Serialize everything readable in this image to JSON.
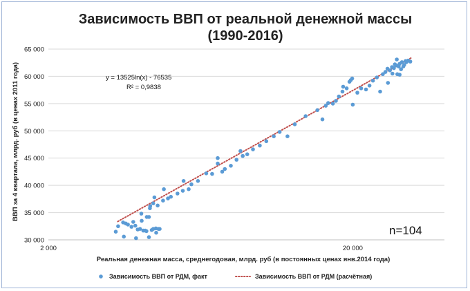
{
  "chart_data": {
    "type": "scatter",
    "title_line1": "Зависимость ВВП от реальной денежной массы",
    "title_line2": "(1990-2016)",
    "xlabel": "Реальная денежная масса, среднегодовая, млрд. руб (в постоянных ценах янв.2014 года)",
    "ylabel": "ВВП за 4 квартала, млрд. руб (в ценах 2011 года)",
    "x_scale": "log",
    "xlim": [
      2000,
      40000
    ],
    "ylim": [
      30000,
      65000
    ],
    "x_ticks": [
      {
        "value": 2000,
        "label": "2 000"
      },
      {
        "value": 20000,
        "label": "20 000"
      }
    ],
    "y_ticks": [
      {
        "value": 30000,
        "label": "30 000"
      },
      {
        "value": 35000,
        "label": "35 000"
      },
      {
        "value": 40000,
        "label": "40 000"
      },
      {
        "value": 45000,
        "label": "45 000"
      },
      {
        "value": 50000,
        "label": "50 000"
      },
      {
        "value": 55000,
        "label": "55 000"
      },
      {
        "value": 60000,
        "label": "60 000"
      },
      {
        "value": 65000,
        "label": "65 000"
      }
    ],
    "grid": "horizontal",
    "legend_position": "bottom",
    "annotation_equation": "y = 13525ln(x) - 76535",
    "annotation_r2": "R² = 0,9838",
    "annotation_n": "n=104",
    "series": [
      {
        "name": "Зависимость ВВП от РДМ, факт",
        "color": "#5b9bd5",
        "marker": "circle",
        "points": [
          [
            3330,
            31500
          ],
          [
            3390,
            32500
          ],
          [
            3520,
            33200
          ],
          [
            3540,
            30600
          ],
          [
            3590,
            33000
          ],
          [
            3650,
            32800
          ],
          [
            3750,
            32400
          ],
          [
            3800,
            33300
          ],
          [
            3860,
            32600
          ],
          [
            3880,
            30300
          ],
          [
            3930,
            31900
          ],
          [
            4000,
            32000
          ],
          [
            4040,
            34800
          ],
          [
            4050,
            33500
          ],
          [
            4100,
            31700
          ],
          [
            4160,
            31700
          ],
          [
            4200,
            31600
          ],
          [
            4210,
            34200
          ],
          [
            4280,
            34200
          ],
          [
            4280,
            30500
          ],
          [
            4310,
            35800
          ],
          [
            4320,
            36200
          ],
          [
            4370,
            31800
          ],
          [
            4420,
            36700
          ],
          [
            4420,
            32000
          ],
          [
            4460,
            37800
          ],
          [
            4510,
            32100
          ],
          [
            4520,
            31300
          ],
          [
            4570,
            36300
          ],
          [
            4600,
            32000
          ],
          [
            4640,
            32000
          ],
          [
            4760,
            37200
          ],
          [
            4790,
            39300
          ],
          [
            4940,
            37600
          ],
          [
            5050,
            37900
          ],
          [
            5310,
            38500
          ],
          [
            5530,
            39000
          ],
          [
            5560,
            40800
          ],
          [
            5780,
            39300
          ],
          [
            5900,
            40200
          ],
          [
            6200,
            40800
          ],
          [
            6600,
            42200
          ],
          [
            6900,
            42100
          ],
          [
            7200,
            44000
          ],
          [
            7200,
            45000
          ],
          [
            7450,
            42500
          ],
          [
            7600,
            43000
          ],
          [
            7950,
            43600
          ],
          [
            8300,
            44700
          ],
          [
            8550,
            46300
          ],
          [
            8700,
            45400
          ],
          [
            9000,
            45700
          ],
          [
            9400,
            46600
          ],
          [
            9900,
            47300
          ],
          [
            10400,
            48100
          ],
          [
            11000,
            49000
          ],
          [
            11500,
            49800
          ],
          [
            12200,
            49000
          ],
          [
            12900,
            51200
          ],
          [
            14000,
            52700
          ],
          [
            15300,
            53800
          ],
          [
            15900,
            52100
          ],
          [
            16300,
            54600
          ],
          [
            16600,
            55100
          ],
          [
            17200,
            55000
          ],
          [
            17600,
            55500
          ],
          [
            18000,
            56300
          ],
          [
            18500,
            57200
          ],
          [
            18600,
            58100
          ],
          [
            19100,
            57800
          ],
          [
            19500,
            59000
          ],
          [
            19700,
            59300
          ],
          [
            19900,
            59600
          ],
          [
            20000,
            54800
          ],
          [
            20700,
            57000
          ],
          [
            21300,
            57800
          ],
          [
            22100,
            57600
          ],
          [
            22700,
            58300
          ],
          [
            23300,
            59200
          ],
          [
            24000,
            59800
          ],
          [
            24600,
            57200
          ],
          [
            25100,
            60400
          ],
          [
            25600,
            60800
          ],
          [
            26000,
            61400
          ],
          [
            26100,
            58800
          ],
          [
            26500,
            61100
          ],
          [
            26900,
            61700
          ],
          [
            27000,
            60500
          ],
          [
            27300,
            61500
          ],
          [
            27500,
            62200
          ],
          [
            27800,
            62000
          ],
          [
            28000,
            60400
          ],
          [
            28300,
            61800
          ],
          [
            28500,
            62300
          ],
          [
            28500,
            60300
          ],
          [
            28800,
            61300
          ],
          [
            29000,
            62600
          ],
          [
            29300,
            61800
          ],
          [
            29500,
            62100
          ],
          [
            29800,
            62800
          ],
          [
            30000,
            62600
          ],
          [
            30400,
            62900
          ],
          [
            30900,
            62700
          ],
          [
            27900,
            63100
          ]
        ]
      },
      {
        "name": "Зависимость ВВП от РДМ (расчётная)",
        "color": "#c0504d",
        "style": "dotted",
        "equation": {
          "a": 13525,
          "b": -76535
        },
        "x_range": [
          3380,
          31100
        ]
      }
    ]
  }
}
